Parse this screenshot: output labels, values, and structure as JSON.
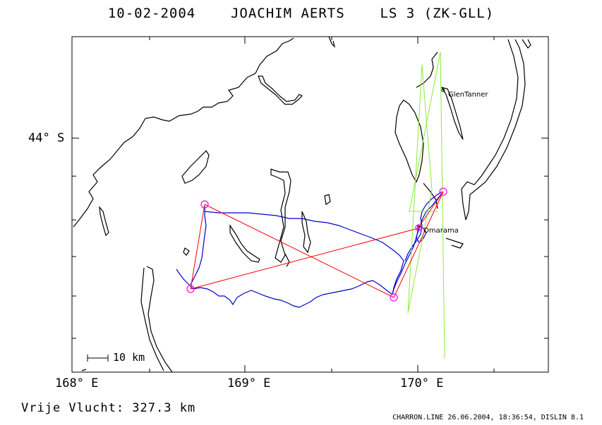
{
  "title": {
    "date": "10-02-2004",
    "pilot": "JOACHIM AERTS",
    "glider": "LS 3 (ZK-GLL)"
  },
  "axes": {
    "x_ticks": [
      "168° E",
      "169° E",
      "170° E"
    ],
    "y_ticks": [
      "44° S"
    ]
  },
  "scale_bar": {
    "label": "10 km"
  },
  "places": {
    "glentanner": "GlenTanner",
    "omarama": "Omarama"
  },
  "footer": {
    "distance": "Vrije Vlucht:  327.3 km",
    "credit": "CHARRON.LINE 26.06.2004, 18:36:54, DISLIN 8.1"
  },
  "colors": {
    "frame": "#000000",
    "coastline": "#000000",
    "track": "#0000cc",
    "task": "#ff0000",
    "airspace": "#88ee33",
    "turnpoint": "#ff00ff"
  }
}
